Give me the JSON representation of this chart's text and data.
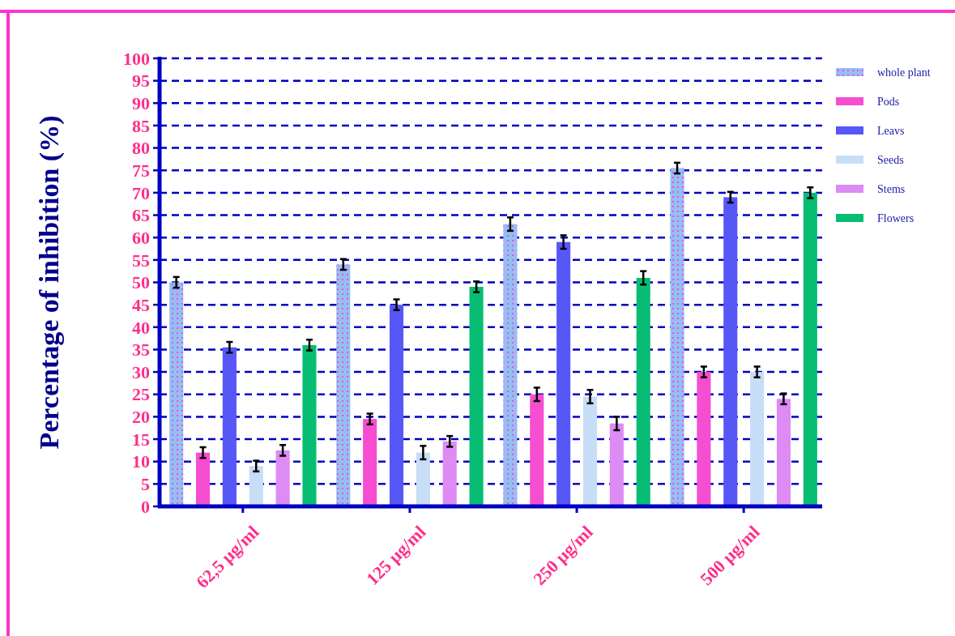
{
  "chart_data": {
    "type": "bar",
    "ylabel": "Percentage of inhibition (%)",
    "categories": [
      "62,5 µg/ml",
      "125 µg/ml",
      "250 µg/ml",
      "500 µg/ml"
    ],
    "series": [
      {
        "name": "whole plant",
        "color": "#93bff5",
        "values": [
          50,
          54,
          63,
          75.5
        ],
        "errors": [
          1.2,
          1.2,
          1.5,
          1.2
        ]
      },
      {
        "name": "Pods",
        "color": "#f54ed1",
        "values": [
          12,
          19.5,
          25,
          30
        ],
        "errors": [
          1.2,
          1.2,
          1.5,
          1.2
        ]
      },
      {
        "name": "Leavs",
        "color": "#5757f7",
        "values": [
          35.5,
          45,
          59,
          69
        ],
        "errors": [
          1.2,
          1.2,
          1.5,
          1.2
        ]
      },
      {
        "name": "Seeds",
        "color": "#c8ddf7",
        "values": [
          9,
          12,
          24.5,
          30
        ],
        "errors": [
          1.2,
          1.5,
          1.5,
          1.2
        ]
      },
      {
        "name": "Stems",
        "color": "#dd8bf5",
        "values": [
          12.5,
          14.5,
          18.5,
          24
        ],
        "errors": [
          1.2,
          1.2,
          1.5,
          1.2
        ]
      },
      {
        "name": "Flowers",
        "color": "#06bd73",
        "values": [
          36,
          49,
          51,
          70
        ],
        "errors": [
          1.2,
          1.2,
          1.5,
          1.2
        ]
      }
    ],
    "ylim": [
      0,
      100
    ],
    "yticks": [
      0,
      5,
      10,
      15,
      20,
      25,
      30,
      35,
      40,
      45,
      50,
      55,
      60,
      65,
      70,
      75,
      80,
      85,
      90,
      95,
      100
    ],
    "grid": "y",
    "legend": "right"
  }
}
